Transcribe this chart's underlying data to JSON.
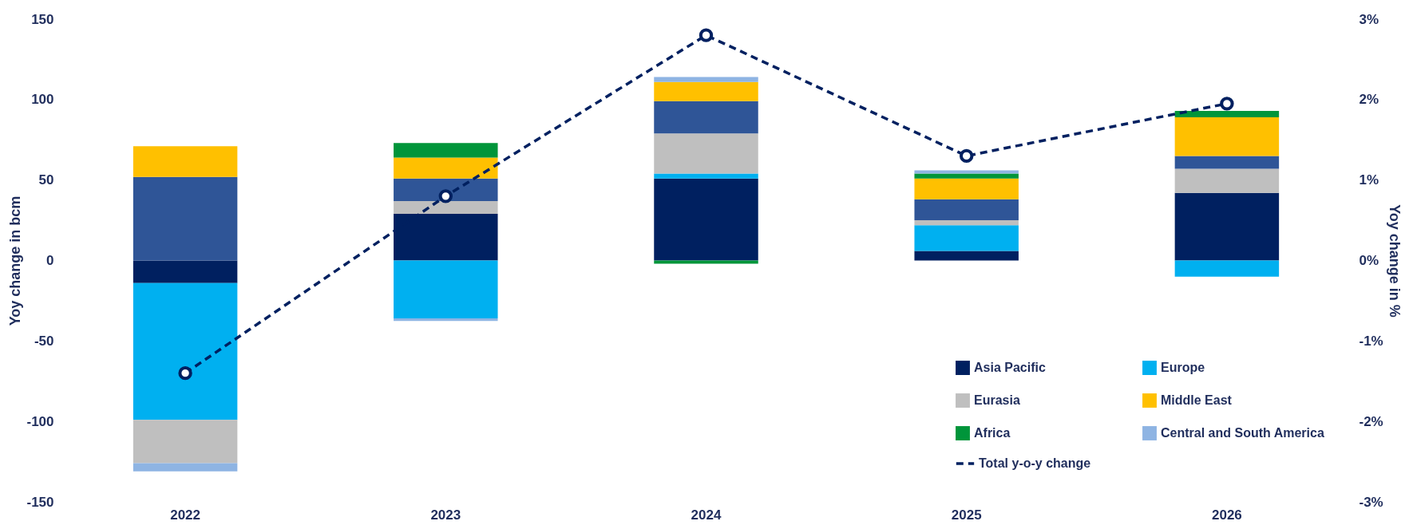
{
  "chart_data": {
    "type": "bar",
    "stacked": true,
    "ylabel": "Yoy change in bcm",
    "y2label": "Yoy change in %",
    "categories": [
      "2022",
      "2023",
      "2024",
      "2025",
      "2026"
    ],
    "ylim": [
      -150,
      150
    ],
    "yticks": [
      -150,
      -100,
      -50,
      0,
      50,
      100,
      150
    ],
    "y2lim": [
      -3,
      3
    ],
    "y2ticks": [
      {
        "value": -3,
        "label": "-3%"
      },
      {
        "value": -2,
        "label": "-2%"
      },
      {
        "value": -1,
        "label": "-1%"
      },
      {
        "value": 0,
        "label": "0%"
      },
      {
        "value": 1,
        "label": "1%"
      },
      {
        "value": 2,
        "label": "2%"
      },
      {
        "value": 3,
        "label": "3%"
      }
    ],
    "grid": false,
    "legend": "bottom right",
    "marker": "circle",
    "line_style": "dashed",
    "series": [
      {
        "name": "Asia Pacific",
        "color": "#002060",
        "values": [
          -14,
          29,
          51,
          6,
          42
        ]
      },
      {
        "name": "Europe",
        "color": "#00b0f0",
        "values": [
          -85,
          -36,
          3,
          16,
          -10
        ]
      },
      {
        "name": "Eurasia",
        "color": "#bfbfbf",
        "values": [
          -27,
          8,
          25,
          3,
          15
        ]
      },
      {
        "color": "#2f5597",
        "values": [
          52,
          14,
          20,
          13,
          8
        ]
      },
      {
        "name": "Middle East",
        "color": "#ffc000",
        "values": [
          19,
          13,
          12,
          13,
          24
        ]
      },
      {
        "name": "Africa",
        "color": "#00953a",
        "values": [
          null,
          9,
          -2,
          3,
          4
        ]
      },
      {
        "name": "Central and South America",
        "color": "#8eb4e3",
        "values": [
          -5,
          -1.5,
          3,
          2,
          null
        ]
      },
      {
        "name": "Total y-o-y change",
        "type": "line",
        "axis": "y2",
        "color": "#002060",
        "values": [
          -1.4,
          0.8,
          2.8,
          1.3,
          1.95
        ]
      }
    ]
  }
}
